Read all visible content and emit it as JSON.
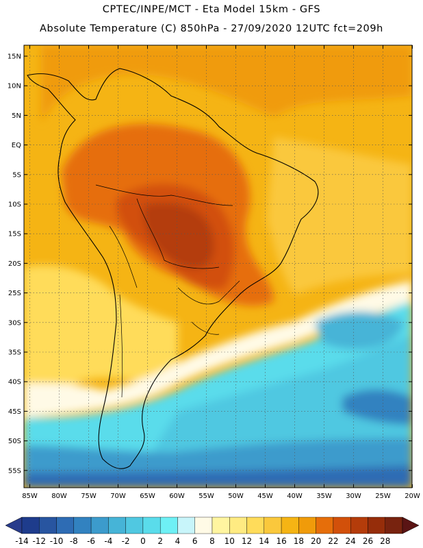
{
  "title_line1": "CPTEC/INPE/MCT -   Eta Model 15km - GFS",
  "title_line2": "Absolute Temperature (C) 850hPa - 27/09/2020 12UTC fct=209h",
  "lat_labels": [
    "15N",
    "10N",
    "5N",
    "EQ",
    "5S",
    "10S",
    "15S",
    "20S",
    "25S",
    "30S",
    "35S",
    "40S",
    "45S",
    "50S",
    "55S"
  ],
  "lon_labels": [
    "85W",
    "80W",
    "75W",
    "70W",
    "65W",
    "60W",
    "55W",
    "50W",
    "45W",
    "40W",
    "35W",
    "30W",
    "25W",
    "20W"
  ],
  "colorbar": {
    "labels": [
      "-14",
      "-12",
      "-10",
      "-8",
      "-6",
      "-4",
      "-2",
      "0",
      "2",
      "4",
      "6",
      "8",
      "10",
      "12",
      "14",
      "16",
      "18",
      "20",
      "22",
      "24",
      "26",
      "28"
    ],
    "colors": [
      "#1e3c8c",
      "#2855a0",
      "#2e6cb4",
      "#3282c0",
      "#3c9bcc",
      "#46b4d7",
      "#50c8e1",
      "#5adceb",
      "#6ef0f5",
      "#c8f5fa",
      "#fffae6",
      "#fff5a0",
      "#ffeb82",
      "#ffdc5a",
      "#fac83c",
      "#f5b414",
      "#f09b0a",
      "#e66e0a",
      "#d2500a",
      "#b43c0a",
      "#962d0a",
      "#78230f"
    ],
    "under_color": "#283c8c",
    "over_color": "#5a1414"
  }
}
